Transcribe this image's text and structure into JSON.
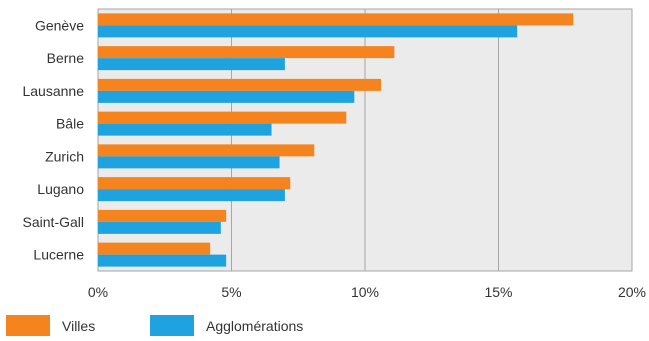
{
  "colors": {
    "plot_background": "#ebebeb",
    "grid_line": "#a6a6a6",
    "series_villes": "#f5841f",
    "series_agglomerations": "#1fa3e0",
    "text": "#333333"
  },
  "chart_data": {
    "type": "bar",
    "orientation": "horizontal",
    "title": "",
    "xlabel": "",
    "ylabel": "",
    "categories": [
      "Genève",
      "Berne",
      "Lausanne",
      "Bâle",
      "Zurich",
      "Lugano",
      "Saint-Gall",
      "Lucerne"
    ],
    "series": [
      {
        "name": "Villes",
        "values": [
          17.8,
          11.1,
          10.6,
          9.3,
          8.1,
          7.2,
          4.8,
          4.2
        ]
      },
      {
        "name": "Agglomérations",
        "values": [
          15.7,
          7.0,
          9.6,
          6.5,
          6.8,
          7.0,
          4.6,
          4.8
        ]
      }
    ],
    "xlim": [
      0,
      20
    ],
    "x_ticks": [
      0,
      5,
      10,
      15,
      20
    ],
    "x_tick_labels": [
      "0%",
      "5%",
      "10%",
      "15%",
      "20%"
    ],
    "grid": true,
    "legend_position": "bottom-left"
  }
}
